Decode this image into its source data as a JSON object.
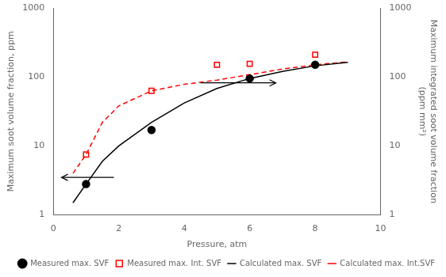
{
  "chart_data": {
    "type": "line",
    "xlabel": "Pressure, atm",
    "ylabel": "Maximum soot volume fraction, ppm",
    "y2label": "Maximum integrated soot volume fraction\n(ppm mm²)",
    "xlim": [
      0,
      10
    ],
    "xticks": [
      0,
      2,
      4,
      6,
      8,
      10
    ],
    "ylim": [
      1,
      1000
    ],
    "yticks": [
      1,
      10,
      100,
      1000
    ],
    "y2lim": [
      1,
      1000
    ],
    "y2ticks": [
      1,
      10,
      100,
      1000
    ],
    "log": "y",
    "grid": false,
    "legend": "lower right",
    "series": [
      {
        "name": "Measured max. SVF",
        "type": "scatter",
        "marker": "circle",
        "color": "black",
        "axis": "y",
        "x": [
          1,
          3,
          6,
          8
        ],
        "values": [
          2.8,
          17,
          95,
          150
        ]
      },
      {
        "name": "Calculated max. SVF",
        "type": "line",
        "line_style": "solid",
        "color": "black",
        "axis": "y",
        "x": [
          0.6,
          1.0,
          1.5,
          2.0,
          3.0,
          4.0,
          5.0,
          6.0,
          7.0,
          8.0,
          9.0
        ],
        "values": [
          1.5,
          2.8,
          6.0,
          10.0,
          22.0,
          42.0,
          68.0,
          95.0,
          120.0,
          145.0,
          163.0
        ]
      },
      {
        "name": "Measured max. Int. SVF",
        "type": "scatter",
        "marker": "square-open",
        "color": "red",
        "axis": "y2",
        "x": [
          1,
          3,
          5,
          6,
          8
        ],
        "values": [
          7.5,
          63,
          150,
          155,
          210
        ]
      },
      {
        "name": "Calculated max. Int.SVF",
        "type": "line",
        "line_style": "dashed",
        "color": "red",
        "axis": "y2",
        "x": [
          0.6,
          1.0,
          1.5,
          2.0,
          3.0,
          4.0,
          5.0,
          6.0,
          7.0,
          8.0,
          9.0
        ],
        "values": [
          4.0,
          7.5,
          22.0,
          38.0,
          63.0,
          78.0,
          90.0,
          108.0,
          130.0,
          150.0,
          165.0
        ]
      }
    ],
    "arrows": [
      {
        "x_start": 1.85,
        "x_end": 0.25,
        "y": 3.5,
        "color": "black"
      },
      {
        "x_start": 4.5,
        "x_end": 6.8,
        "y": 82,
        "color": "black"
      }
    ]
  }
}
